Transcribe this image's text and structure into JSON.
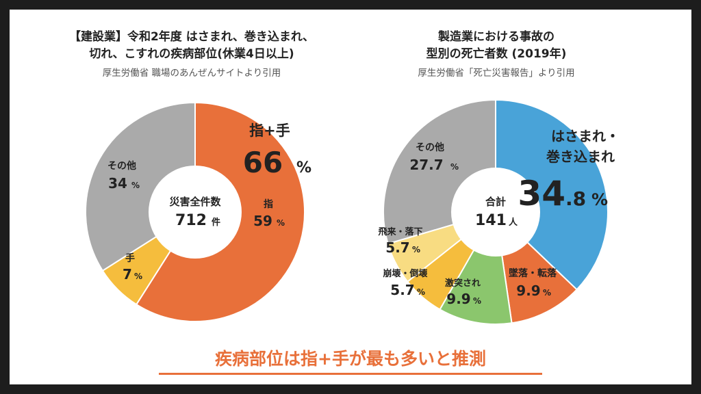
{
  "chart_data": [
    {
      "type": "pie",
      "title": "【建設業】令和2年度 はさまれ、巻き込まれ、切れ、こすれの疾病部位(休業4日以上)",
      "title_lines": [
        "【建設業】令和2年度 はさまれ、巻き込まれ、",
        "切れ、こすれの疾病部位(休業4日以上)"
      ],
      "source": "厚生労働省 職場のあんぜんサイトより引用",
      "center_label": "災害全件数",
      "center_value": "712",
      "center_unit": "件",
      "slices": [
        {
          "label": "指",
          "value": 59,
          "display": "59",
          "color": "#e8703a"
        },
        {
          "label": "手",
          "value": 7,
          "display": "7",
          "color": "#f5bd3d"
        },
        {
          "label": "その他",
          "value": 34,
          "display": "34",
          "color": "#aaaaaa"
        }
      ],
      "callout": {
        "label": "指+手",
        "value": "66",
        "unit": "%"
      },
      "percent_sign": "%"
    },
    {
      "type": "pie",
      "title": "製造業における事故の型別の死亡者数 (2019年)",
      "title_lines": [
        "製造業における事故の",
        "型別の死亡者数 (2019年)"
      ],
      "source": "厚生労働省「死亡災害報告」より引用",
      "center_label": "合計",
      "center_value": "141",
      "center_unit": "人",
      "slices": [
        {
          "label": "はさまれ・巻き込まれ",
          "value": 34.8,
          "display": "34.8",
          "color": "#49a3d8"
        },
        {
          "label": "墜落・転落",
          "value": 9.9,
          "display": "9.9",
          "color": "#e8703a"
        },
        {
          "label": "激突され",
          "value": 9.9,
          "display": "9.9",
          "color": "#8bc66d"
        },
        {
          "label": "崩壊・倒壊",
          "value": 5.7,
          "display": "5.7",
          "color": "#f5bd3d"
        },
        {
          "label": "飛来・落下",
          "value": 5.7,
          "display": "5.7",
          "color": "#f8dc82"
        },
        {
          "label": "その他",
          "value": 27.7,
          "display": "27.7",
          "color": "#aaaaaa"
        }
      ],
      "big_label_lines": [
        "はさまれ・",
        "巻き込まれ"
      ],
      "big_value_int": "34",
      "big_value_dec": ".8",
      "percent_sign": "%"
    }
  ],
  "conclusion": "疾病部位は指+手が最も多いと推測"
}
